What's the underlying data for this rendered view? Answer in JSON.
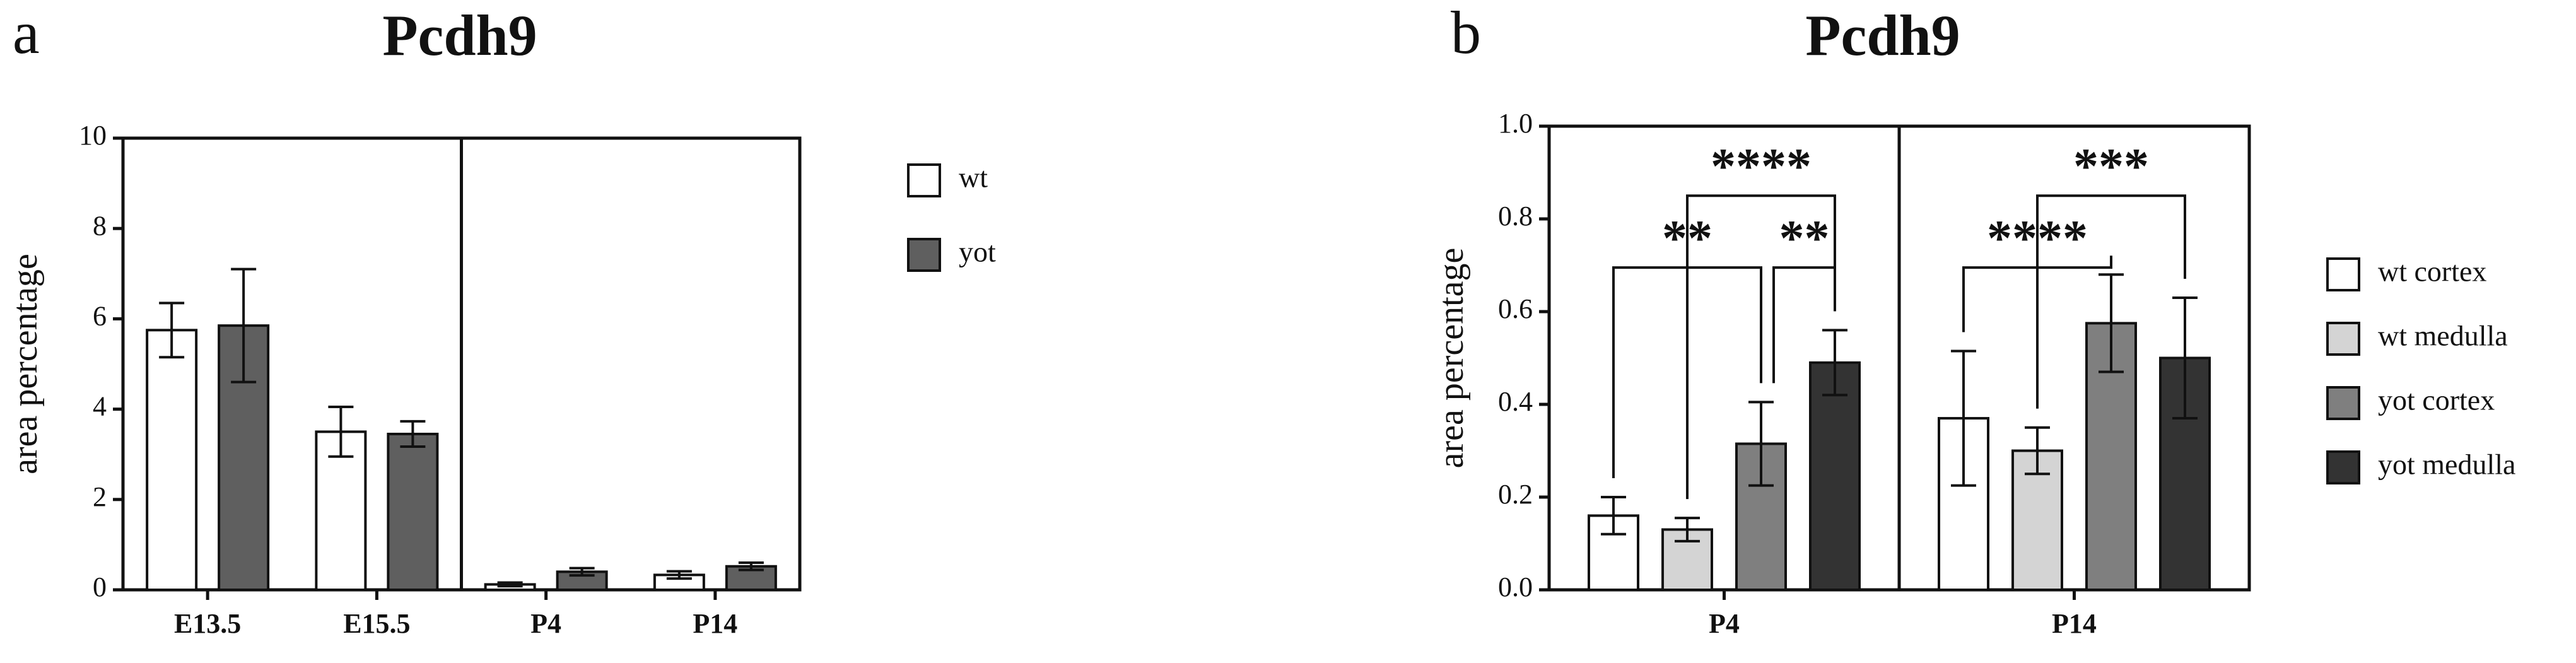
{
  "chart_data": [
    {
      "type": "bar",
      "panel": "a",
      "title": "Pcdh9",
      "ylabel": "area percentage",
      "categories": [
        "E13.5",
        "E15.5",
        "P4",
        "P14"
      ],
      "series": [
        {
          "name": "wt",
          "color": "#ffffff",
          "values": [
            5.75,
            3.5,
            0.12,
            0.33
          ],
          "errors": [
            0.6,
            0.55,
            0.04,
            0.08
          ]
        },
        {
          "name": "yot",
          "color": "#5f5f5f",
          "values": [
            5.85,
            3.45,
            0.4,
            0.52
          ],
          "errors": [
            1.25,
            0.28,
            0.08,
            0.08
          ]
        }
      ],
      "ylim": [
        0,
        10
      ],
      "yticks": [
        0,
        2,
        4,
        6,
        8,
        10
      ]
    },
    {
      "type": "bar",
      "panel": "b",
      "title": "Pcdh9",
      "ylabel": "area percentage",
      "categories": [
        "P4",
        "P14"
      ],
      "series": [
        {
          "name": "wt cortex",
          "color": "#ffffff",
          "values": [
            0.16,
            0.37
          ],
          "errors": [
            0.04,
            0.145
          ]
        },
        {
          "name": "wt medulla",
          "color": "#d4d4d4",
          "values": [
            0.13,
            0.3
          ],
          "errors": [
            0.025,
            0.05
          ]
        },
        {
          "name": "yot cortex",
          "color": "#7f7f7f",
          "values": [
            0.315,
            0.575
          ],
          "errors": [
            0.09,
            0.105
          ]
        },
        {
          "name": "yot medulla",
          "color": "#333333",
          "values": [
            0.49,
            0.5
          ],
          "errors": [
            0.07,
            0.13
          ]
        }
      ],
      "ylim": [
        0,
        1
      ],
      "yticks": [
        {
          "value": 0,
          "label": "0.0"
        },
        0.2,
        0.4,
        0.6,
        0.8,
        {
          "value": 1,
          "label": "1.0"
        }
      ],
      "annotations": [
        {
          "text": "**",
          "category": 0,
          "from": 0,
          "to": 2
        },
        {
          "text": "**",
          "category": 0,
          "from": 2,
          "to": 3
        },
        {
          "text": "****",
          "category": 0,
          "from": 1,
          "to": 3
        },
        {
          "text": "****",
          "category": 1,
          "from": 0,
          "to": 2
        },
        {
          "text": "***",
          "category": 1,
          "from": 1,
          "to": 3
        }
      ]
    }
  ]
}
